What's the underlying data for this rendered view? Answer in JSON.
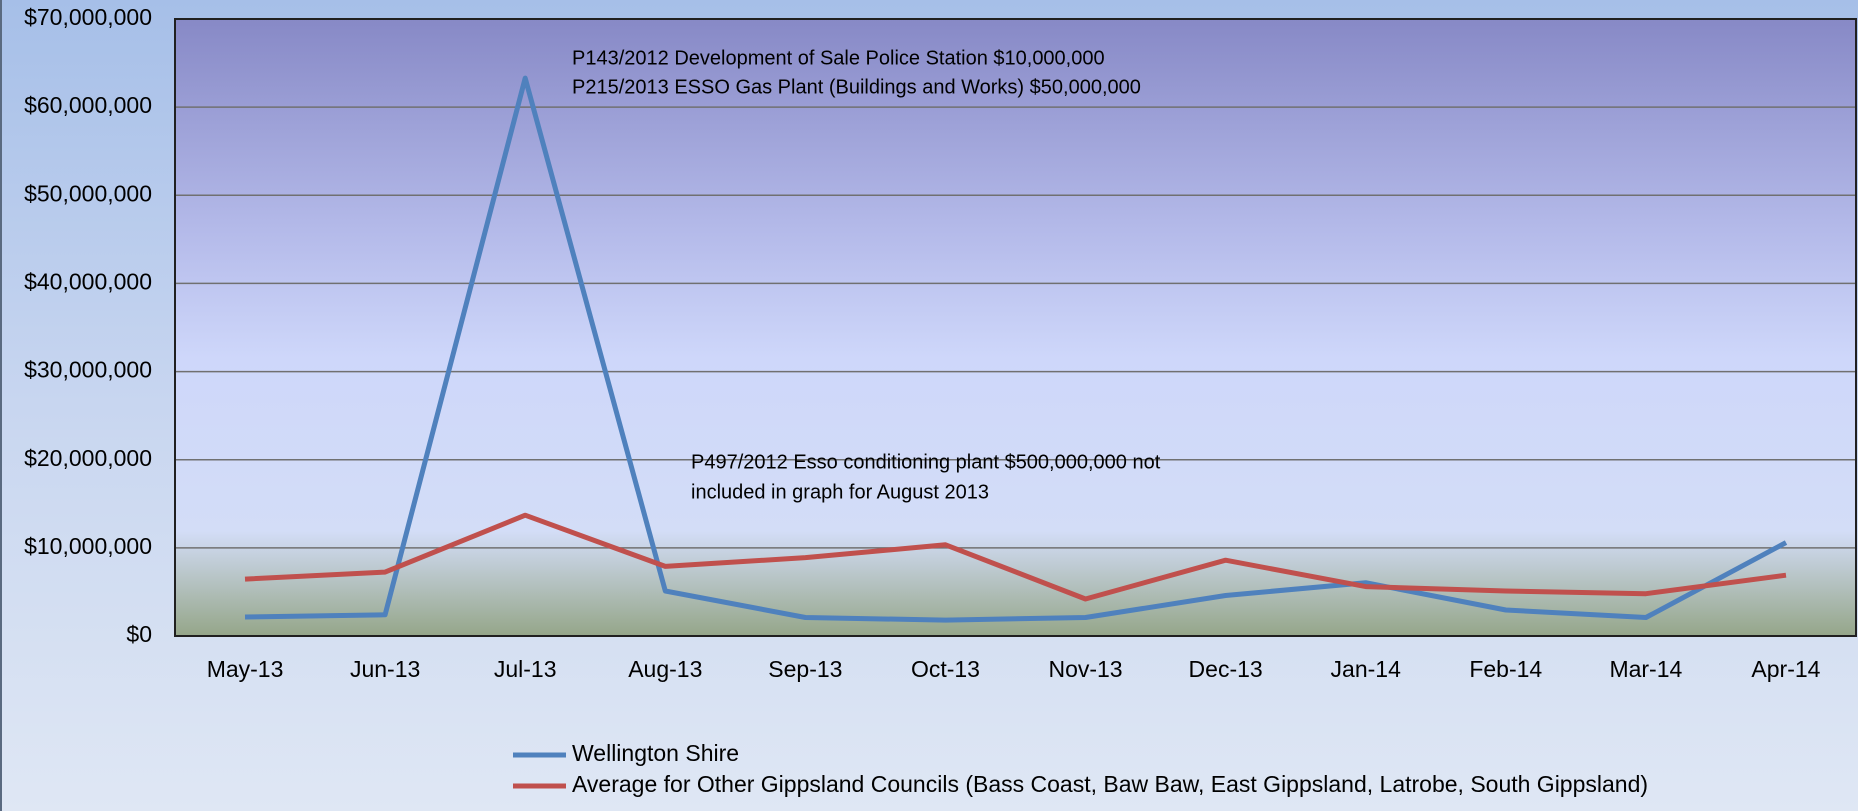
{
  "chart_data": {
    "type": "line",
    "categories": [
      "May-13",
      "Jun-13",
      "Jul-13",
      "Aug-13",
      "Sep-13",
      "Oct-13",
      "Nov-13",
      "Dec-13",
      "Jan-14",
      "Feb-14",
      "Mar-14",
      "Apr-14"
    ],
    "series": [
      {
        "name": "Wellington Shire",
        "color": "#4f81bd",
        "values": [
          2150000,
          2400000,
          63300000,
          5100000,
          2100000,
          1800000,
          2100000,
          4600000,
          6050000,
          2950000,
          2100000,
          10600000
        ]
      },
      {
        "name": "Average for Other Gippsland Councils (Bass Coast, Baw Baw, East Gippsland, Latrobe, South Gippsland)",
        "color": "#c0504d",
        "values": [
          6450000,
          7250000,
          13700000,
          7900000,
          8900000,
          10350000,
          4200000,
          8600000,
          5600000,
          5100000,
          4800000,
          6900000
        ]
      }
    ],
    "ylim": [
      0,
      70000000
    ],
    "yticks": [
      {
        "value": 0,
        "label": "$0"
      },
      {
        "value": 10000000,
        "label": "$10,000,000"
      },
      {
        "value": 20000000,
        "label": "$20,000,000"
      },
      {
        "value": 30000000,
        "label": "$30,000,000"
      },
      {
        "value": 40000000,
        "label": "$40,000,000"
      },
      {
        "value": 50000000,
        "label": "$50,000,000"
      },
      {
        "value": 60000000,
        "label": "$60,000,000"
      },
      {
        "value": 70000000,
        "label": "$70,000,000"
      }
    ],
    "grid": true,
    "legend": "bottom",
    "annotations": [
      "P143/2012 Development of Sale Police Station  $10,000,000",
      "P215/2013 ESSO Gas Plant (Buildings and Works)  $50,000,000",
      "P497/2012 Esso conditioning plant $500,000,000 not",
      "included in graph for August 2013"
    ]
  }
}
